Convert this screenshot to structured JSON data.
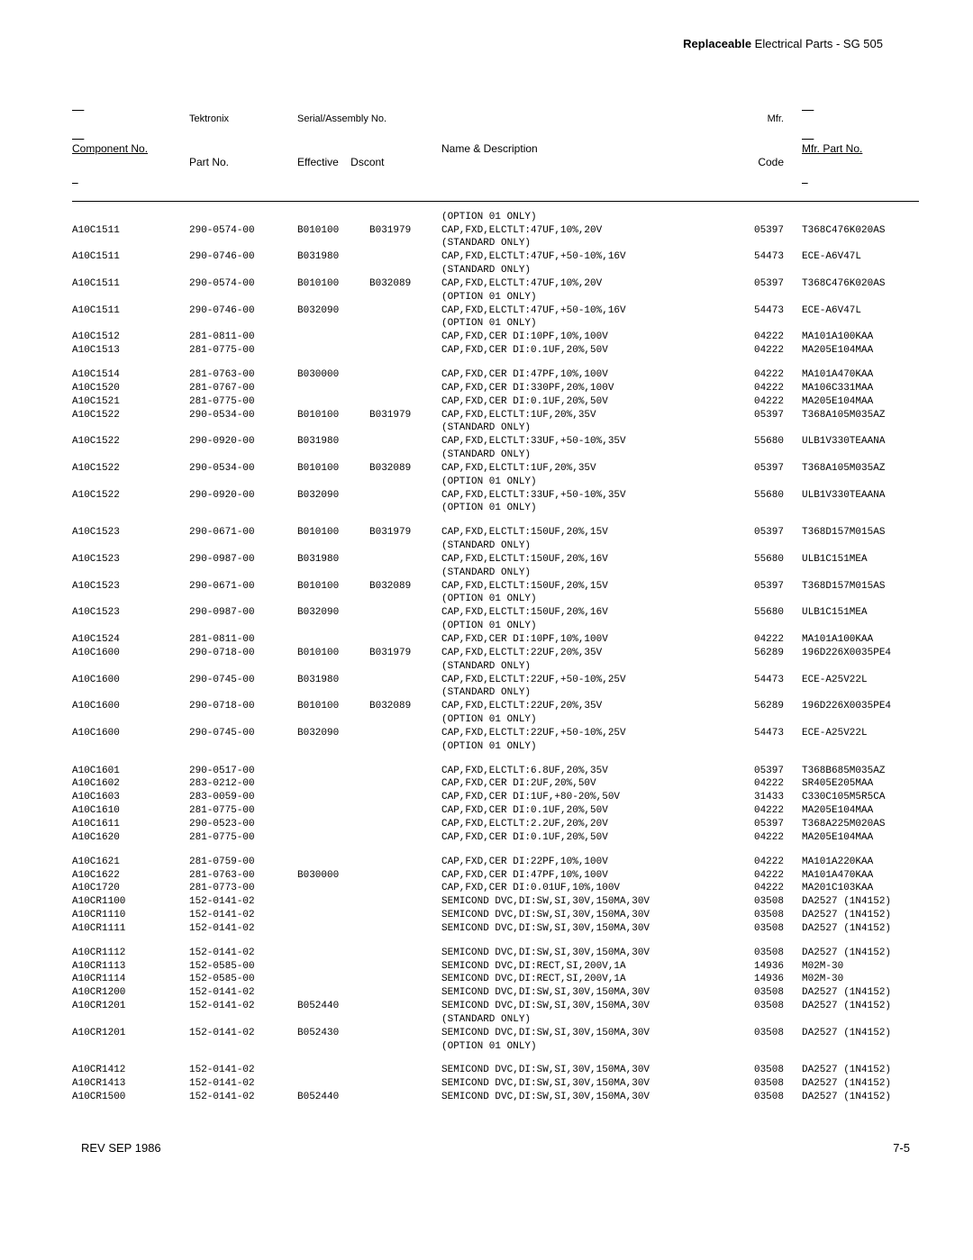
{
  "header": {
    "bold": "Replaceable",
    "rest": " Electrical Parts - SG 505"
  },
  "columns": {
    "comp_line1": "",
    "comp_line2": "Component No.",
    "tek_line1": "Tektronix",
    "tek_line2": "Part No.",
    "ser_line1": "Serial/Assembly No.",
    "ser_eff": "Effective",
    "ser_dsc": "Dscont",
    "nd_line1": "",
    "nd_line2": "Name & Description",
    "mfr_line1": "Mfr.",
    "mfr_line2": "Code",
    "mpn_line1": "",
    "mpn_line2": "Mfr. Part No."
  },
  "rows": [
    {
      "comp": "",
      "tek": "",
      "eff": "",
      "dsc": "",
      "nd": "(OPTION 01 ONLY)",
      "mfr": "",
      "mpn": ""
    },
    {
      "comp": "A10C1511",
      "tek": "290-0574-00",
      "eff": "B010100",
      "dsc": "B031979",
      "nd": "CAP,FXD,ELCTLT:47UF,10%,20V",
      "mfr": "05397",
      "mpn": "T368C476K020AS"
    },
    {
      "comp": "",
      "tek": "",
      "eff": "",
      "dsc": "",
      "nd": "(STANDARD ONLY)",
      "mfr": "",
      "mpn": ""
    },
    {
      "comp": "A10C1511",
      "tek": "290-0746-00",
      "eff": "B031980",
      "dsc": "",
      "nd": "CAP,FXD,ELCTLT:47UF,+50-10%,16V",
      "mfr": "54473",
      "mpn": "ECE-A6V47L"
    },
    {
      "comp": "",
      "tek": "",
      "eff": "",
      "dsc": "",
      "nd": "(STANDARD ONLY)",
      "mfr": "",
      "mpn": ""
    },
    {
      "comp": "A10C1511",
      "tek": "290-0574-00",
      "eff": "B010100",
      "dsc": "B032089",
      "nd": "CAP,FXD,ELCTLT:47UF,10%,20V",
      "mfr": "05397",
      "mpn": "T368C476K020AS"
    },
    {
      "comp": "",
      "tek": "",
      "eff": "",
      "dsc": "",
      "nd": "(OPTION 01 ONLY)",
      "mfr": "",
      "mpn": ""
    },
    {
      "comp": "A10C1511",
      "tek": "290-0746-00",
      "eff": "B032090",
      "dsc": "",
      "nd": "CAP,FXD,ELCTLT:47UF,+50-10%,16V",
      "mfr": "54473",
      "mpn": "ECE-A6V47L"
    },
    {
      "comp": "",
      "tek": "",
      "eff": "",
      "dsc": "",
      "nd": "(OPTION 01 ONLY)",
      "mfr": "",
      "mpn": ""
    },
    {
      "comp": "A10C1512",
      "tek": "281-0811-00",
      "eff": "",
      "dsc": "",
      "nd": "CAP,FXD,CER DI:10PF,10%,100V",
      "mfr": "04222",
      "mpn": "MA101A100KAA"
    },
    {
      "comp": "A10C1513",
      "tek": "281-0775-00",
      "eff": "",
      "dsc": "",
      "nd": "CAP,FXD,CER DI:0.1UF,20%,50V",
      "mfr": "04222",
      "mpn": "MA205E104MAA"
    },
    {
      "gap": true
    },
    {
      "comp": "A10C1514",
      "tek": "281-0763-00",
      "eff": "B030000",
      "dsc": "",
      "nd": "CAP,FXD,CER DI:47PF,10%,100V",
      "mfr": "04222",
      "mpn": "MA101A470KAA"
    },
    {
      "comp": "A10C1520",
      "tek": "281-0767-00",
      "eff": "",
      "dsc": "",
      "nd": "CAP,FXD,CER DI:330PF,20%,100V",
      "mfr": "04222",
      "mpn": "MA106C331MAA"
    },
    {
      "comp": "A10C1521",
      "tek": "281-0775-00",
      "eff": "",
      "dsc": "",
      "nd": "CAP,FXD,CER DI:0.1UF,20%,50V",
      "mfr": "04222",
      "mpn": "MA205E104MAA"
    },
    {
      "comp": "A10C1522",
      "tek": "290-0534-00",
      "eff": "B010100",
      "dsc": "B031979",
      "nd": "CAP,FXD,ELCTLT:1UF,20%,35V",
      "mfr": "05397",
      "mpn": "T368A105M035AZ"
    },
    {
      "comp": "",
      "tek": "",
      "eff": "",
      "dsc": "",
      "nd": "(STANDARD ONLY)",
      "mfr": "",
      "mpn": ""
    },
    {
      "comp": "A10C1522",
      "tek": "290-0920-00",
      "eff": "B031980",
      "dsc": "",
      "nd": "CAP,FXD,ELCTLT:33UF,+50-10%,35V",
      "mfr": "55680",
      "mpn": "ULB1V330TEAANA"
    },
    {
      "comp": "",
      "tek": "",
      "eff": "",
      "dsc": "",
      "nd": "(STANDARD ONLY)",
      "mfr": "",
      "mpn": ""
    },
    {
      "comp": "A10C1522",
      "tek": "290-0534-00",
      "eff": "B010100",
      "dsc": "B032089",
      "nd": "CAP,FXD,ELCTLT:1UF,20%,35V",
      "mfr": "05397",
      "mpn": "T368A105M035AZ"
    },
    {
      "comp": "",
      "tek": "",
      "eff": "",
      "dsc": "",
      "nd": "(OPTION 01 ONLY)",
      "mfr": "",
      "mpn": ""
    },
    {
      "comp": "A10C1522",
      "tek": "290-0920-00",
      "eff": "B032090",
      "dsc": "",
      "nd": "CAP,FXD,ELCTLT:33UF,+50-10%,35V",
      "mfr": "55680",
      "mpn": "ULB1V330TEAANA"
    },
    {
      "comp": "",
      "tek": "",
      "eff": "",
      "dsc": "",
      "nd": "(OPTION 01 ONLY)",
      "mfr": "",
      "mpn": ""
    },
    {
      "gap": true
    },
    {
      "comp": "A10C1523",
      "tek": "290-0671-00",
      "eff": "B010100",
      "dsc": "B031979",
      "nd": "CAP,FXD,ELCTLT:150UF,20%,15V",
      "mfr": "05397",
      "mpn": "T368D157M015AS"
    },
    {
      "comp": "",
      "tek": "",
      "eff": "",
      "dsc": "",
      "nd": "(STANDARD ONLY)",
      "mfr": "",
      "mpn": ""
    },
    {
      "comp": "A10C1523",
      "tek": "290-0987-00",
      "eff": "B031980",
      "dsc": "",
      "nd": "CAP,FXD,ELCTLT:150UF,20%,16V",
      "mfr": "55680",
      "mpn": "ULB1C151MEA"
    },
    {
      "comp": "",
      "tek": "",
      "eff": "",
      "dsc": "",
      "nd": "(STANDARD ONLY)",
      "mfr": "",
      "mpn": ""
    },
    {
      "comp": "A10C1523",
      "tek": "290-0671-00",
      "eff": "B010100",
      "dsc": "B032089",
      "nd": "CAP,FXD,ELCTLT:150UF,20%,15V",
      "mfr": "05397",
      "mpn": "T368D157M015AS"
    },
    {
      "comp": "",
      "tek": "",
      "eff": "",
      "dsc": "",
      "nd": "(OPTION 01 ONLY)",
      "mfr": "",
      "mpn": ""
    },
    {
      "comp": "A10C1523",
      "tek": "290-0987-00",
      "eff": "B032090",
      "dsc": "",
      "nd": "CAP,FXD,ELCTLT:150UF,20%,16V",
      "mfr": "55680",
      "mpn": "ULB1C151MEA"
    },
    {
      "comp": "",
      "tek": "",
      "eff": "",
      "dsc": "",
      "nd": "(OPTION 01 ONLY)",
      "mfr": "",
      "mpn": ""
    },
    {
      "comp": "A10C1524",
      "tek": "281-0811-00",
      "eff": "",
      "dsc": "",
      "nd": "CAP,FXD,CER DI:10PF,10%,100V",
      "mfr": "04222",
      "mpn": "MA101A100KAA"
    },
    {
      "comp": "A10C1600",
      "tek": "290-0718-00",
      "eff": "B010100",
      "dsc": "B031979",
      "nd": "CAP,FXD,ELCTLT:22UF,20%,35V",
      "mfr": "56289",
      "mpn": "196D226X0035PE4"
    },
    {
      "comp": "",
      "tek": "",
      "eff": "",
      "dsc": "",
      "nd": "(STANDARD ONLY)",
      "mfr": "",
      "mpn": ""
    },
    {
      "comp": "A10C1600",
      "tek": "290-0745-00",
      "eff": "B031980",
      "dsc": "",
      "nd": "CAP,FXD,ELCTLT:22UF,+50-10%,25V",
      "mfr": "54473",
      "mpn": "ECE-A25V22L"
    },
    {
      "comp": "",
      "tek": "",
      "eff": "",
      "dsc": "",
      "nd": "(STANDARD ONLY)",
      "mfr": "",
      "mpn": ""
    },
    {
      "comp": "A10C1600",
      "tek": "290-0718-00",
      "eff": "B010100",
      "dsc": "B032089",
      "nd": "CAP,FXD,ELCTLT:22UF,20%,35V",
      "mfr": "56289",
      "mpn": "196D226X0035PE4"
    },
    {
      "comp": "",
      "tek": "",
      "eff": "",
      "dsc": "",
      "nd": "(OPTION 01 ONLY)",
      "mfr": "",
      "mpn": ""
    },
    {
      "comp": "A10C1600",
      "tek": "290-0745-00",
      "eff": "B032090",
      "dsc": "",
      "nd": "CAP,FXD,ELCTLT:22UF,+50-10%,25V",
      "mfr": "54473",
      "mpn": "ECE-A25V22L"
    },
    {
      "comp": "",
      "tek": "",
      "eff": "",
      "dsc": "",
      "nd": "(OPTION 01 ONLY)",
      "mfr": "",
      "mpn": ""
    },
    {
      "gap": true
    },
    {
      "comp": "A10C1601",
      "tek": "290-0517-00",
      "eff": "",
      "dsc": "",
      "nd": "CAP,FXD,ELCTLT:6.8UF,20%,35V",
      "mfr": "05397",
      "mpn": "T368B685M035AZ"
    },
    {
      "comp": "A10C1602",
      "tek": "283-0212-00",
      "eff": "",
      "dsc": "",
      "nd": "CAP,FXD,CER DI:2UF,20%,50V",
      "mfr": "04222",
      "mpn": "SR405E205MAA"
    },
    {
      "comp": "A10C1603",
      "tek": "283-0059-00",
      "eff": "",
      "dsc": "",
      "nd": "CAP,FXD,CER DI:1UF,+80-20%,50V",
      "mfr": "31433",
      "mpn": "C330C105M5R5CA"
    },
    {
      "comp": "A10C1610",
      "tek": "281-0775-00",
      "eff": "",
      "dsc": "",
      "nd": "CAP,FXD,CER DI:0.1UF,20%,50V",
      "mfr": "04222",
      "mpn": "MA205E104MAA"
    },
    {
      "comp": "A10C1611",
      "tek": "290-0523-00",
      "eff": "",
      "dsc": "",
      "nd": "CAP,FXD,ELCTLT:2.2UF,20%,20V",
      "mfr": "05397",
      "mpn": "T368A225M020AS"
    },
    {
      "comp": "A10C1620",
      "tek": "281-0775-00",
      "eff": "",
      "dsc": "",
      "nd": "CAP,FXD,CER DI:0.1UF,20%,50V",
      "mfr": "04222",
      "mpn": "MA205E104MAA"
    },
    {
      "gap": true
    },
    {
      "comp": "A10C1621",
      "tek": "281-0759-00",
      "eff": "",
      "dsc": "",
      "nd": "CAP,FXD,CER DI:22PF,10%,100V",
      "mfr": "04222",
      "mpn": "MA101A220KAA"
    },
    {
      "comp": "A10C1622",
      "tek": "281-0763-00",
      "eff": "B030000",
      "dsc": "",
      "nd": "CAP,FXD,CER DI:47PF,10%,100V",
      "mfr": "04222",
      "mpn": "MA101A470KAA"
    },
    {
      "comp": "A10C1720",
      "tek": "281-0773-00",
      "eff": "",
      "dsc": "",
      "nd": "CAP,FXD,CER DI:0.01UF,10%,100V",
      "mfr": "04222",
      "mpn": "MA201C103KAA"
    },
    {
      "comp": "A10CR1100",
      "tek": "152-0141-02",
      "eff": "",
      "dsc": "",
      "nd": "SEMICOND DVC,DI:SW,SI,30V,150MA,30V",
      "mfr": "03508",
      "mpn": "DA2527 (1N4152)"
    },
    {
      "comp": "A10CR1110",
      "tek": "152-0141-02",
      "eff": "",
      "dsc": "",
      "nd": "SEMICOND DVC,DI:SW,SI,30V,150MA,30V",
      "mfr": "03508",
      "mpn": "DA2527 (1N4152)"
    },
    {
      "comp": "A10CR1111",
      "tek": "152-0141-02",
      "eff": "",
      "dsc": "",
      "nd": "SEMICOND DVC,DI:SW,SI,30V,150MA,30V",
      "mfr": "03508",
      "mpn": "DA2527 (1N4152)"
    },
    {
      "gap": true
    },
    {
      "comp": "A10CR1112",
      "tek": "152-0141-02",
      "eff": "",
      "dsc": "",
      "nd": "SEMICOND DVC,DI:SW,SI,30V,150MA,30V",
      "mfr": "03508",
      "mpn": "DA2527 (1N4152)"
    },
    {
      "comp": "A10CR1113",
      "tek": "152-0585-00",
      "eff": "",
      "dsc": "",
      "nd": "SEMICOND DVC,DI:RECT,SI,200V,1A",
      "mfr": "14936",
      "mpn": "M02M-30"
    },
    {
      "comp": "A10CR1114",
      "tek": "152-0585-00",
      "eff": "",
      "dsc": "",
      "nd": "SEMICOND DVC,DI:RECT,SI,200V,1A",
      "mfr": "14936",
      "mpn": "M02M-30"
    },
    {
      "comp": "A10CR1200",
      "tek": "152-0141-02",
      "eff": "",
      "dsc": "",
      "nd": "SEMICOND DVC,DI:SW,SI,30V,150MA,30V",
      "mfr": "03508",
      "mpn": "DA2527 (1N4152)"
    },
    {
      "comp": "A10CR1201",
      "tek": "152-0141-02",
      "eff": "B052440",
      "dsc": "",
      "nd": "SEMICOND DVC,DI:SW,SI,30V,150MA,30V",
      "mfr": "03508",
      "mpn": "DA2527 (1N4152)"
    },
    {
      "comp": "",
      "tek": "",
      "eff": "",
      "dsc": "",
      "nd": "(STANDARD ONLY)",
      "mfr": "",
      "mpn": ""
    },
    {
      "comp": "A10CR1201",
      "tek": "152-0141-02",
      "eff": "B052430",
      "dsc": "",
      "nd": "SEMICOND DVC,DI:SW,SI,30V,150MA,30V",
      "mfr": "03508",
      "mpn": "DA2527 (1N4152)"
    },
    {
      "comp": "",
      "tek": "",
      "eff": "",
      "dsc": "",
      "nd": "(OPTION 01 ONLY)",
      "mfr": "",
      "mpn": ""
    },
    {
      "gap": true
    },
    {
      "comp": "A10CR1412",
      "tek": "152-0141-02",
      "eff": "",
      "dsc": "",
      "nd": "SEMICOND DVC,DI:SW,SI,30V,150MA,30V",
      "mfr": "03508",
      "mpn": "DA2527 (1N4152)"
    },
    {
      "comp": "A10CR1413",
      "tek": "152-0141-02",
      "eff": "",
      "dsc": "",
      "nd": "SEMICOND DVC,DI:SW,SI,30V,150MA,30V",
      "mfr": "03508",
      "mpn": "DA2527 (1N4152)"
    },
    {
      "comp": "A10CR1500",
      "tek": "152-0141-02",
      "eff": "B052440",
      "dsc": "",
      "nd": "SEMICOND DVC,DI:SW,SI,30V,150MA,30V",
      "mfr": "03508",
      "mpn": "DA2527 (1N4152)"
    }
  ],
  "footer": {
    "left": "REV SEP 1986",
    "right": "7-5"
  }
}
